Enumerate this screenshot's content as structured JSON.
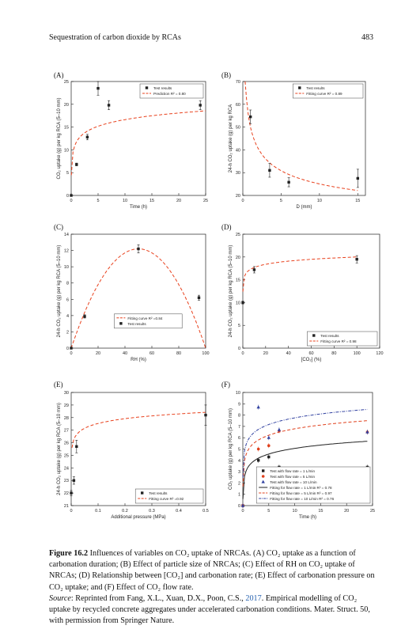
{
  "header": {
    "running_title": "Sequestration of carbon dioxide by RCAs",
    "page_number": "483"
  },
  "panels": [
    {
      "label": "(A)",
      "xlabel": "Time (h)",
      "ylabel": "CO₂ uptake (g) per kg RCA (5–10 mm)",
      "xlim": [
        0,
        25
      ],
      "ylim": [
        0,
        25
      ],
      "xticks": [
        0,
        5,
        10,
        15,
        20,
        25
      ],
      "yticks": [
        0,
        5,
        10,
        15,
        20,
        25
      ],
      "legend": [
        "Test results",
        "Prediction R² = 0.80"
      ],
      "legend_pos": "top-right",
      "points": [
        [
          0,
          0
        ],
        [
          1,
          6.8
        ],
        [
          3,
          12.8
        ],
        [
          5,
          23.5
        ],
        [
          7,
          19.8
        ],
        [
          24,
          19.8
        ]
      ],
      "err": [
        0,
        0.3,
        0.6,
        1.5,
        1.0,
        1.0
      ]
    },
    {
      "label": "(B)",
      "xlabel": "D (mm)",
      "ylabel": "24-h CO₂ uptake (g) per kg RCA",
      "xlim": [
        0,
        16
      ],
      "ylim": [
        20,
        70
      ],
      "xticks": [
        0,
        5,
        10,
        15
      ],
      "yticks": [
        20,
        30,
        40,
        50,
        60,
        70
      ],
      "legend": [
        "Test results",
        "Fitting curve R² = 0.89"
      ],
      "legend_pos": "top-right",
      "points": [
        [
          1,
          54.5
        ],
        [
          3.5,
          31
        ],
        [
          6,
          25.8
        ],
        [
          15,
          27.5
        ]
      ],
      "err": [
        3,
        3,
        2,
        4
      ]
    },
    {
      "label": "(C)",
      "xlabel": "RH (%)",
      "ylabel": "24-h CO₂ uptake (g) per kg RCA (5–10 mm)",
      "xlim": [
        0,
        100
      ],
      "ylim": [
        0,
        14
      ],
      "xticks": [
        0,
        20,
        40,
        60,
        80,
        100
      ],
      "yticks": [
        0,
        2,
        4,
        6,
        8,
        10,
        12,
        14
      ],
      "legend": [
        "Fitting curve R² =0.84",
        "Test results"
      ],
      "legend_pos": "lower-center",
      "points": [
        [
          0,
          0
        ],
        [
          10,
          3.9
        ],
        [
          50,
          12.2
        ],
        [
          95,
          6.2
        ]
      ],
      "err": [
        0,
        0.2,
        0.5,
        0.3
      ]
    },
    {
      "label": "(D)",
      "xlabel": "[CO₂] (%)",
      "ylabel": "24-h CO₂ uptake (g) per kg RCA (5–10 mm)",
      "xlim": [
        0,
        120
      ],
      "ylim": [
        0,
        25
      ],
      "xticks": [
        0,
        20,
        40,
        60,
        80,
        100,
        120
      ],
      "yticks": [
        0,
        5,
        10,
        15,
        20,
        25
      ],
      "legend": [
        "Test results",
        "Fitting curve R² = 0.98"
      ],
      "legend_pos": "bottom-right",
      "points": [
        [
          0,
          10
        ],
        [
          10,
          17.2
        ],
        [
          100,
          19.5
        ]
      ],
      "err": [
        0.3,
        0.7,
        0.8
      ]
    },
    {
      "label": "(E)",
      "xlabel": "Additional pressure (MPa)",
      "ylabel": "24-h CO₂ uptake (g) per kg RCA (5–10 mm)",
      "xlim": [
        0,
        0.5
      ],
      "ylim": [
        21,
        30
      ],
      "xticks": [
        "0",
        "0.1",
        "0.2",
        "0.3",
        "0.4",
        "0.5"
      ],
      "xtick_values": [
        0,
        0.1,
        0.2,
        0.3,
        0.4,
        0.5
      ],
      "yticks": [
        21,
        22,
        23,
        24,
        25,
        26,
        27,
        28,
        29,
        30
      ],
      "legend": [
        "Test results",
        "Fitting curve R² =0.92"
      ],
      "legend_pos": "bottom-right",
      "points": [
        [
          0,
          22
        ],
        [
          0.01,
          23
        ],
        [
          0.02,
          25.7
        ],
        [
          0.5,
          28.2
        ]
      ],
      "err": [
        0.2,
        0.3,
        0.5,
        0.8
      ]
    },
    {
      "label": "(F)",
      "xlabel": "Time (h)",
      "ylabel": "CO₂ uptake (g) per kg RCA (5–10 mm)",
      "xlim": [
        0,
        25
      ],
      "ylim": [
        0,
        10
      ],
      "xticks": [
        0,
        5,
        10,
        15,
        20,
        25
      ],
      "yticks": [
        0,
        1,
        2,
        3,
        4,
        5,
        6,
        7,
        8,
        9,
        10
      ],
      "legend": [
        "Test with flow rate = 1 L/min",
        "Test with flow rate = 5 L/min",
        "Test with flow rate = 10 L/min",
        "Fitting for flow rate = 1 L/min R² = 0.78",
        "Fitting for flow rate = 5 L/min R² = 0.97",
        "Fitting for flow rate = 10 L/min R² = 0.76"
      ],
      "legend_pos": "bottom-right",
      "series": [
        {
          "name": "1 L/min",
          "color": "#222222",
          "marker": "square",
          "points": [
            [
              0,
              0
            ],
            [
              3,
              4
            ],
            [
              5,
              4.3
            ],
            [
              7,
              3.4
            ],
            [
              24,
              3.4
            ]
          ]
        },
        {
          "name": "5 L/min",
          "color": "#e0401c",
          "marker": "circle",
          "points": [
            [
              0,
              0
            ],
            [
              3,
              5
            ],
            [
              5,
              5.3
            ],
            [
              7,
              6.6
            ],
            [
              24,
              6.5
            ]
          ]
        },
        {
          "name": "10 L/min",
          "color": "#3040a0",
          "marker": "triangle",
          "points": [
            [
              0,
              0
            ],
            [
              3,
              8.7
            ],
            [
              5,
              6.0
            ],
            [
              7,
              6.7
            ],
            [
              24,
              6.5
            ]
          ]
        }
      ]
    }
  ],
  "caption": {
    "figure_label": "Figure 16.2",
    "text": "Influences of variables on CO₂ uptake of NRCAs. (A) CO₂ uptake as a function of carbonation duration; (B) Effect of particle size of NRCAs; (C) Effect of RH on CO₂ uptake of NRCAs; (D) Relationship between [CO₂] and carbonation rate; (E) Effect of carbonation pressure on CO₂ uptake; and (F) Effect of CO₂ flow rate.",
    "source_label": "Source",
    "source_text_1": ": Reprinted from Fang, X.L., Xuan, D.X., Poon, C.S., ",
    "source_year": "2017",
    "source_text_2": ". Empirical modelling of CO₂ uptake by recycled concrete aggregates under accelerated carbonation conditions. Mater. Struct. 50, with permission from Springer Nature."
  }
}
